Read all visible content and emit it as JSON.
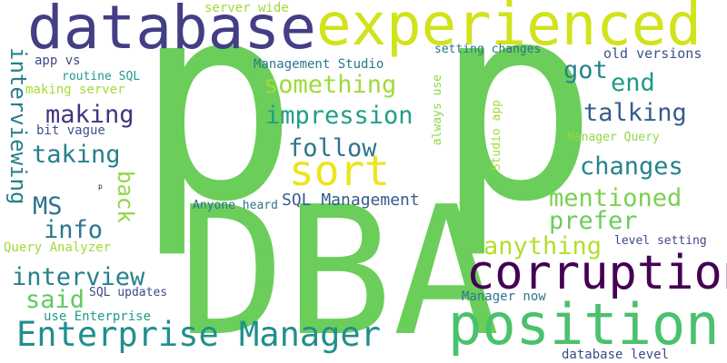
{
  "cloud": {
    "background": "#ffffff",
    "words": [
      {
        "text": "p",
        "color": "#6bce5a"
      },
      {
        "text": "p",
        "color": "#6bce5a"
      },
      {
        "text": "DBA",
        "color": "#6bce5a"
      },
      {
        "text": "database",
        "color": "#433e85"
      },
      {
        "text": "experienced",
        "color": "#d2e21b"
      },
      {
        "text": "sort",
        "color": "#ece51b"
      },
      {
        "text": "corruption",
        "color": "#440154"
      },
      {
        "text": "position",
        "color": "#4ac16d"
      },
      {
        "text": "Enterprise Manager",
        "color": "#218f8d"
      },
      {
        "text": "something",
        "color": "#a0da39"
      },
      {
        "text": "impression",
        "color": "#1f9e89"
      },
      {
        "text": "follow",
        "color": "#2b758e"
      },
      {
        "text": "making",
        "color": "#46337e"
      },
      {
        "text": "taking",
        "color": "#277f8e"
      },
      {
        "text": "got",
        "color": "#26828e"
      },
      {
        "text": "end",
        "color": "#1f9a8a"
      },
      {
        "text": "talking",
        "color": "#365c8d"
      },
      {
        "text": "changes",
        "color": "#26828e"
      },
      {
        "text": "mentioned",
        "color": "#7ad151"
      },
      {
        "text": "prefer",
        "color": "#6ccd5a"
      },
      {
        "text": "anything",
        "color": "#b5de2b"
      },
      {
        "text": "MS",
        "color": "#2d708e"
      },
      {
        "text": "info",
        "color": "#2a788e"
      },
      {
        "text": "interview",
        "color": "#277f8e"
      },
      {
        "text": "said",
        "color": "#5ec962"
      },
      {
        "text": "interviewing",
        "color": "#277f8e"
      },
      {
        "text": "back",
        "color": "#8fd744"
      },
      {
        "text": "SQL Management",
        "color": "#365c8d"
      },
      {
        "text": "server wide",
        "color": "#9fda3a"
      },
      {
        "text": "Management Studio",
        "color": "#2a788e"
      },
      {
        "text": "app vs",
        "color": "#3f4889"
      },
      {
        "text": "routine SQL",
        "color": "#1f9a8a"
      },
      {
        "text": "making server",
        "color": "#a5db36"
      },
      {
        "text": "bit vague",
        "color": "#3b528b"
      },
      {
        "text": "p",
        "color": "#440154"
      },
      {
        "text": "Anyone heard",
        "color": "#2c728e"
      },
      {
        "text": "setting changes",
        "color": "#2c728e"
      },
      {
        "text": "old versions",
        "color": "#3b528b"
      },
      {
        "text": "always use",
        "color": "#8fd744"
      },
      {
        "text": "Studio app",
        "color": "#a5db36"
      },
      {
        "text": "Manager Query",
        "color": "#8fd744"
      },
      {
        "text": "level setting",
        "color": "#3f4889"
      },
      {
        "text": "Query Analyzer",
        "color": "#a0da39"
      },
      {
        "text": "SQL updates",
        "color": "#3f4889"
      },
      {
        "text": "use Enterprise",
        "color": "#1f9a8a"
      },
      {
        "text": "Manager now",
        "color": "#2a788e"
      },
      {
        "text": "database level",
        "color": "#3f4889"
      }
    ]
  }
}
